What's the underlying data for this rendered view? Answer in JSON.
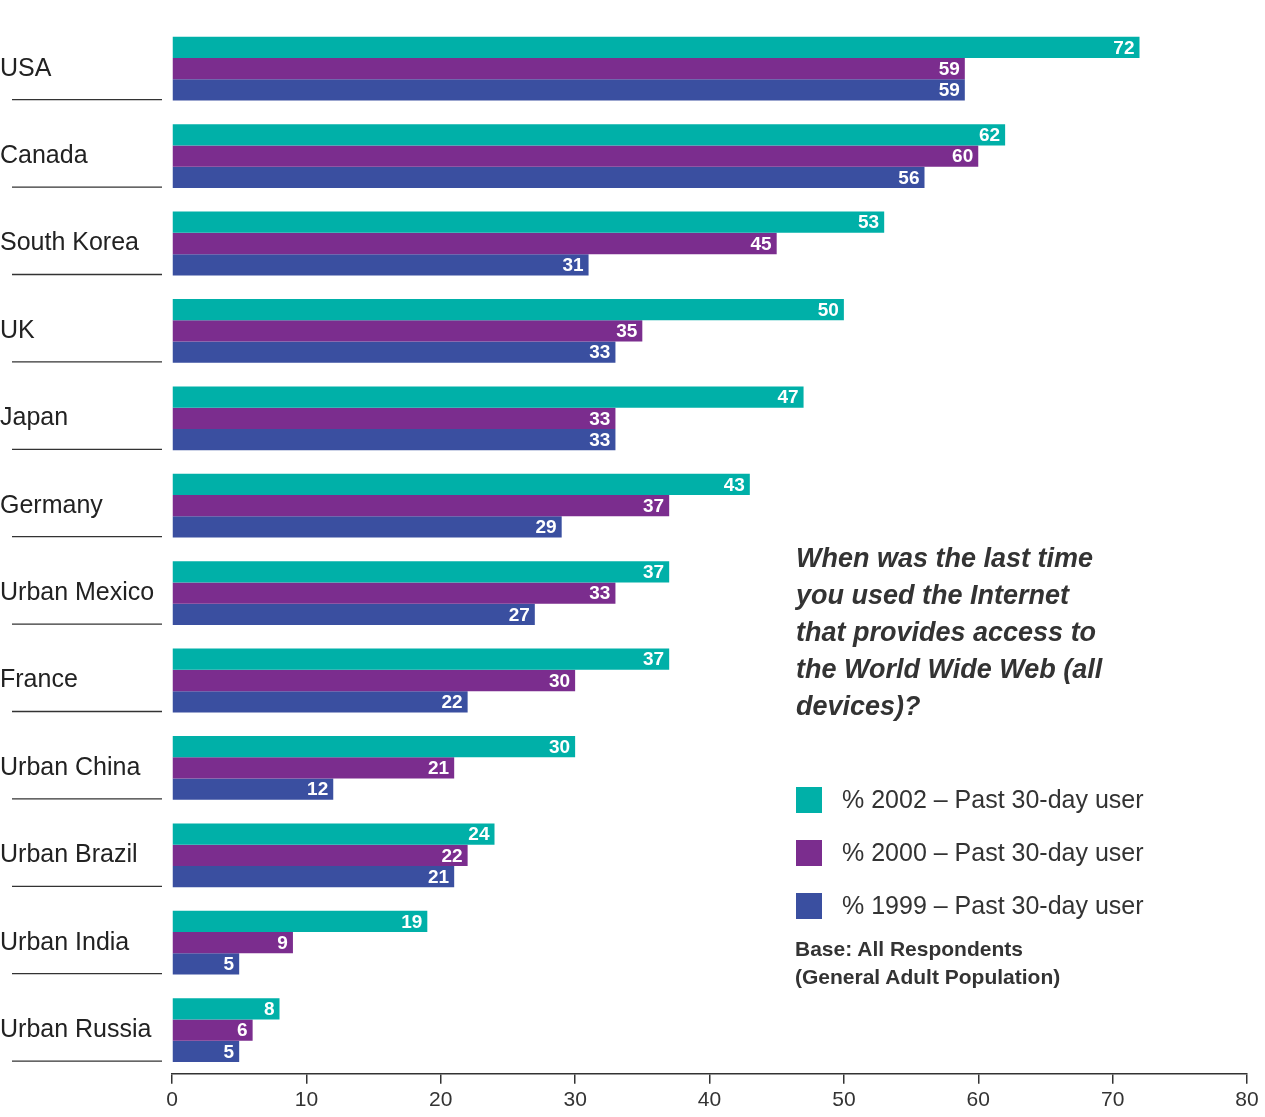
{
  "chart_data": {
    "type": "bar",
    "orientation": "horizontal",
    "title": "When was the last time you used the Internet that provides access to the World Wide Web (all devices)?",
    "categories": [
      "USA",
      "Canada",
      "South Korea",
      "UK",
      "Japan",
      "Germany",
      "Urban Mexico",
      "France",
      "Urban China",
      "Urban Brazil",
      "Urban India",
      "Urban Russia"
    ],
    "series": [
      {
        "name": "% 2002 – Past 30-day user",
        "color": "#00b0a8",
        "values": [
          72,
          62,
          53,
          50,
          47,
          43,
          37,
          37,
          30,
          24,
          19,
          8
        ]
      },
      {
        "name": "% 2000 – Past 30-day user",
        "color": "#7b2d8e",
        "values": [
          59,
          60,
          45,
          35,
          33,
          37,
          33,
          30,
          21,
          22,
          9,
          6
        ]
      },
      {
        "name": "% 1999 – Past 30-day user",
        "color": "#3a4fa0",
        "values": [
          59,
          56,
          31,
          33,
          33,
          29,
          27,
          22,
          12,
          21,
          5,
          5
        ]
      }
    ],
    "xlim": [
      0,
      80
    ],
    "xticks": [
      0,
      10,
      20,
      30,
      40,
      50,
      60,
      70,
      80
    ],
    "grid": false,
    "legend": "right",
    "data_labels": true,
    "annotations": [
      "Base: All Respondents\n(General Adult Population)"
    ]
  }
}
